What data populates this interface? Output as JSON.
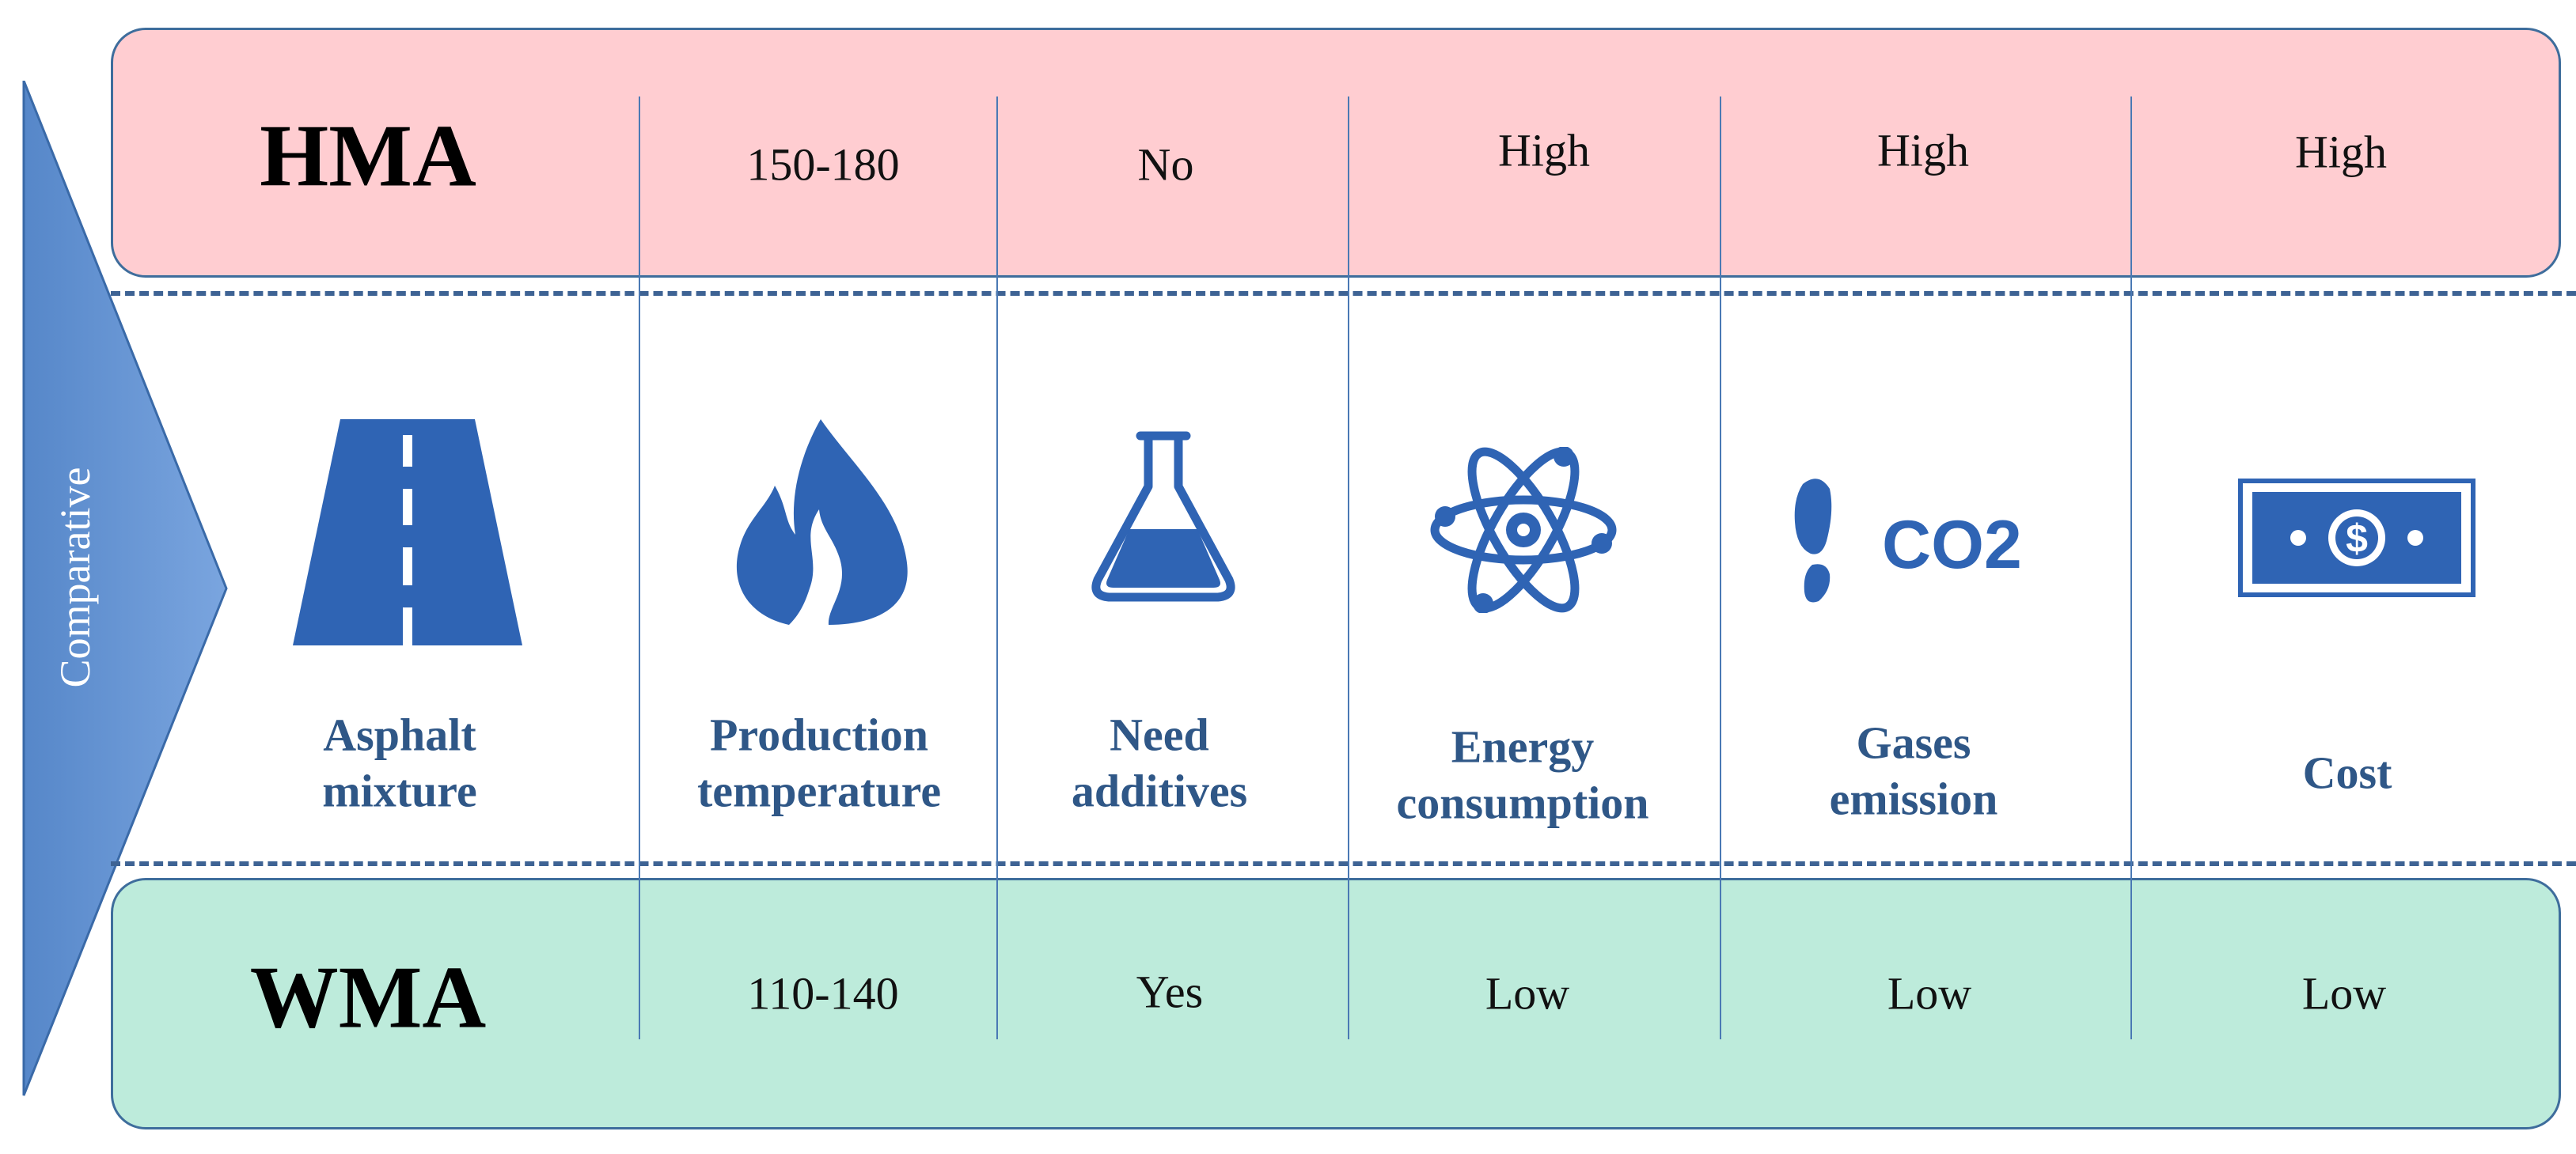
{
  "side_label": "Comparative",
  "rows": {
    "hma": {
      "title": "HMA",
      "values": [
        "150-180",
        "No",
        "High",
        "High",
        "High"
      ]
    },
    "wma": {
      "title": "WMA",
      "values": [
        "110-140",
        "Yes",
        "Low",
        "Low",
        "Low"
      ]
    }
  },
  "columns": [
    {
      "icon": "road-icon",
      "label_lines": [
        "Asphalt",
        "mixture"
      ]
    },
    {
      "icon": "flame-icon",
      "label_lines": [
        "Production",
        "temperature"
      ]
    },
    {
      "icon": "flask-icon",
      "label_lines": [
        "Need",
        "additives"
      ]
    },
    {
      "icon": "atom-icon",
      "label_lines": [
        "Energy",
        "consumption"
      ]
    },
    {
      "icon": "footprint-co2-icon",
      "label_lines": [
        "Gases",
        "emission"
      ],
      "icon_text": "CO2"
    },
    {
      "icon": "banknote-icon",
      "label_lines": [
        "Cost"
      ],
      "icon_text": "$"
    }
  ],
  "colors": {
    "hma_band": "#ffcdd1",
    "wma_band": "#bdebdb",
    "accent_blue": "#2f64b4",
    "header_text": "#2f5787",
    "arrow": "#5b8fd1"
  }
}
